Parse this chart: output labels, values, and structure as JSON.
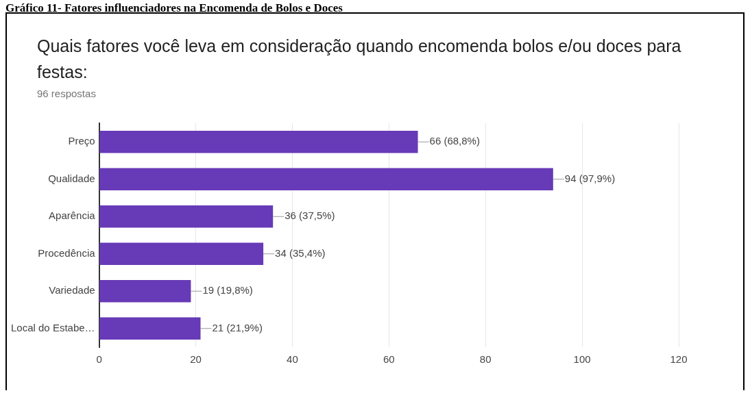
{
  "chart_data": {
    "type": "bar",
    "orientation": "horizontal",
    "title": "Quais fatores você leva em consideração quando encomenda bolos e/ou doces para festas:",
    "subtitle": "96 respostas",
    "annotations": [
      "Gráfico 11- Fatores influenciadores na Encomenda de Bolos e Doces"
    ],
    "categories": [
      "Preço",
      "Qualidade",
      "Aparência",
      "Procedência",
      "Variedade",
      "Local do Estabe…"
    ],
    "values": [
      66,
      94,
      36,
      34,
      19,
      21
    ],
    "value_labels": [
      "66 (68,8%)",
      "94 (97,9%)",
      "36 (37,5%)",
      "34 (35,4%)",
      "19 (19,8%)",
      "21 (21,9%)"
    ],
    "color": "#673ab7",
    "xlim": [
      0,
      120
    ],
    "xticks": [
      0,
      20,
      40,
      60,
      80,
      100,
      120
    ],
    "grid": "x",
    "legend": false
  }
}
